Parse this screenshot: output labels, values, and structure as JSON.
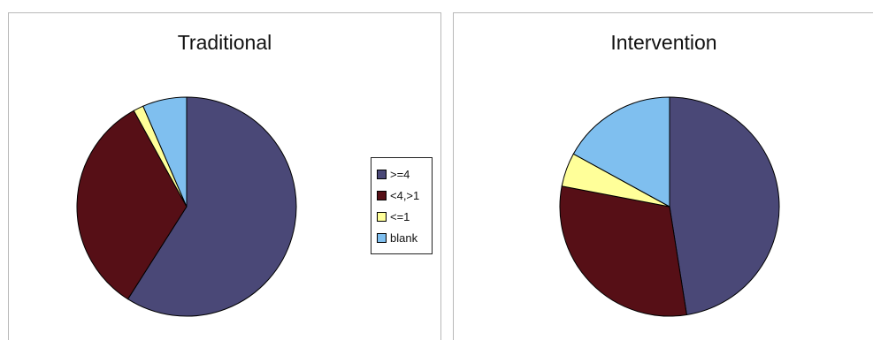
{
  "chart_data": [
    {
      "type": "pie",
      "title": "Traditional",
      "categories": [
        ">=4",
        "<4,>1",
        "<=1",
        "blank"
      ],
      "values": [
        59,
        33,
        1.5,
        6.5
      ],
      "colors": [
        "#4a4877",
        "#560f16",
        "#ffff99",
        "#7fbfef"
      ]
    },
    {
      "type": "pie",
      "title": "Intervention",
      "categories": [
        ">=4",
        "<4,>1",
        "<=1",
        "blank"
      ],
      "values": [
        47.5,
        30.5,
        5,
        17
      ],
      "colors": [
        "#4a4877",
        "#560f16",
        "#ffff99",
        "#7fbfef"
      ]
    }
  ],
  "legend": {
    "placement": "between-charts",
    "items": [
      {
        "label": ">=4",
        "color": "#4a4877"
      },
      {
        "label": "<4,>1",
        "color": "#560f16"
      },
      {
        "label": "<=1",
        "color": "#ffff99"
      },
      {
        "label": "blank",
        "color": "#7fbfef"
      }
    ]
  }
}
